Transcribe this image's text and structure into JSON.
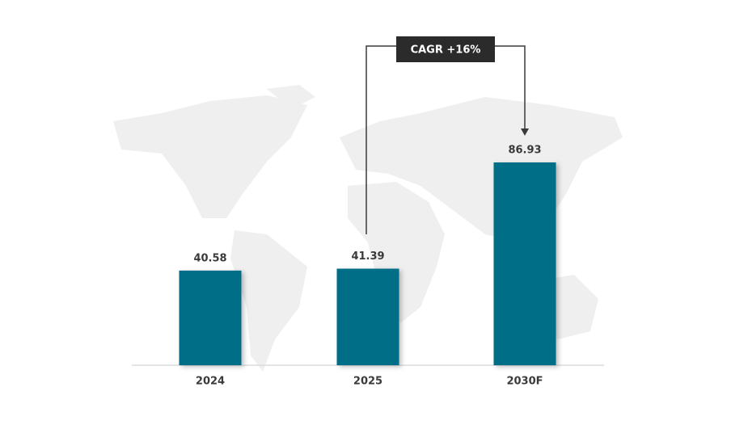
{
  "chart_data": {
    "type": "bar",
    "categories": [
      "2024",
      "2025",
      "2030F"
    ],
    "values": [
      40.58,
      41.39,
      86.93
    ],
    "color": "#036e87",
    "annotation": "CAGR +16%"
  }
}
